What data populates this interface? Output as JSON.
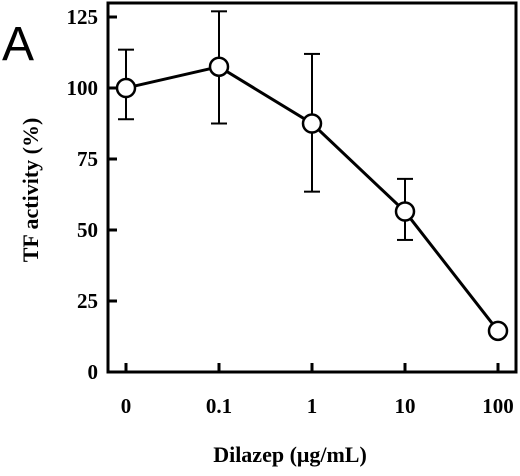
{
  "chart_data": {
    "type": "line",
    "panel_label": "A",
    "title": "",
    "xlabel": "Dilazep (μg/mL)",
    "ylabel": "TF activity (%)",
    "categories": [
      "0",
      "0.1",
      "1",
      "10",
      "100"
    ],
    "ylim": [
      0,
      125
    ],
    "yticks": [
      "0",
      "25",
      "50",
      "75",
      "100",
      "125"
    ],
    "grid": false,
    "series": [
      {
        "values": [
          100,
          107.5,
          87.5,
          56.5,
          14.5
        ],
        "error_upper": [
          113.5,
          127,
          112,
          68,
          null
        ],
        "error_lower": [
          89,
          87.5,
          63.5,
          46.5,
          null
        ]
      }
    ],
    "colors": {
      "line": "#000000",
      "marker_fill": "#ffffff"
    }
  }
}
